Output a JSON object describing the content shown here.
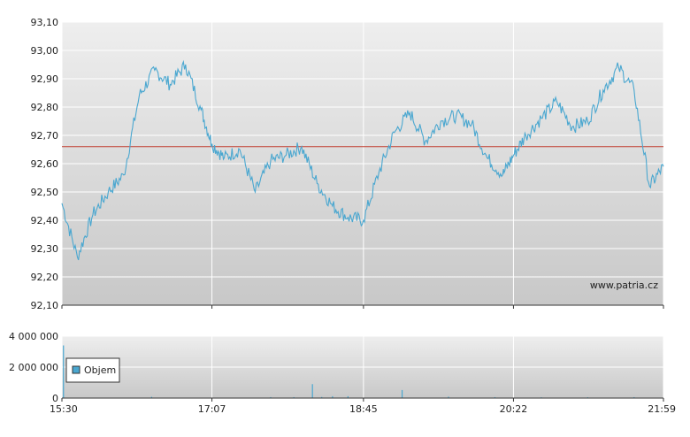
{
  "chart_data": [
    {
      "type": "line",
      "title": "",
      "xlabel": "",
      "ylabel": "",
      "ylim": [
        92.1,
        93.1
      ],
      "y_ticks": [
        "93,10",
        "93,00",
        "92,90",
        "92,80",
        "92,70",
        "92,60",
        "92,50",
        "92,40",
        "92,30",
        "92,20",
        "92,10"
      ],
      "x_ticks": [
        "15:30",
        "17:07",
        "18:45",
        "20:22",
        "21:59"
      ],
      "reference_line": 92.66,
      "grid": true,
      "watermark": "www.patria.cz",
      "colors": {
        "line": "#4aa7d0",
        "reference": "#c0392b",
        "grid": "#ffffff"
      },
      "series": [
        {
          "x": [
            "15:30",
            "15:40",
            "15:50",
            "16:00",
            "16:10",
            "16:20",
            "16:30",
            "16:40",
            "16:50",
            "17:00",
            "17:07",
            "17:15",
            "17:25",
            "17:35",
            "17:45",
            "17:55",
            "18:05",
            "18:15",
            "18:25",
            "18:35",
            "18:45",
            "18:55",
            "19:05",
            "19:15",
            "19:25",
            "19:35",
            "19:45",
            "19:55",
            "20:05",
            "20:15",
            "20:22",
            "20:30",
            "20:40",
            "20:50",
            "21:00",
            "21:10",
            "21:20",
            "21:30",
            "21:40",
            "21:50",
            "21:59"
          ],
          "values": [
            92.46,
            92.27,
            92.42,
            92.5,
            92.56,
            92.84,
            92.93,
            92.88,
            92.95,
            92.79,
            92.67,
            92.62,
            92.65,
            92.5,
            92.61,
            92.63,
            92.66,
            92.53,
            92.45,
            92.41,
            92.4,
            92.57,
            92.71,
            92.78,
            92.68,
            92.75,
            92.77,
            92.74,
            92.62,
            92.56,
            92.63,
            92.7,
            92.76,
            92.82,
            92.73,
            92.75,
            92.86,
            92.94,
            92.86,
            92.52,
            92.59
          ]
        }
      ]
    },
    {
      "type": "bar",
      "ylim": [
        0,
        4000000
      ],
      "y_ticks": [
        "4 000 000",
        "2 000 000",
        "0"
      ],
      "x_ticks": [
        "15:30",
        "17:07",
        "18:45",
        "20:22",
        "21:59"
      ],
      "legend": {
        "label": "Objem",
        "placement": "top-left"
      },
      "colors": {
        "bar": "#4aa7d0"
      },
      "series": [
        {
          "name": "Objem",
          "x": [
            "15:31",
            "16:28",
            "17:45",
            "18:00",
            "18:12",
            "18:18",
            "18:25",
            "18:35",
            "19:10",
            "19:40",
            "20:10",
            "20:40",
            "21:10",
            "21:40"
          ],
          "values": [
            3400000,
            80000,
            60000,
            60000,
            900000,
            70000,
            120000,
            120000,
            520000,
            90000,
            60000,
            50000,
            50000,
            60000
          ]
        }
      ]
    }
  ]
}
